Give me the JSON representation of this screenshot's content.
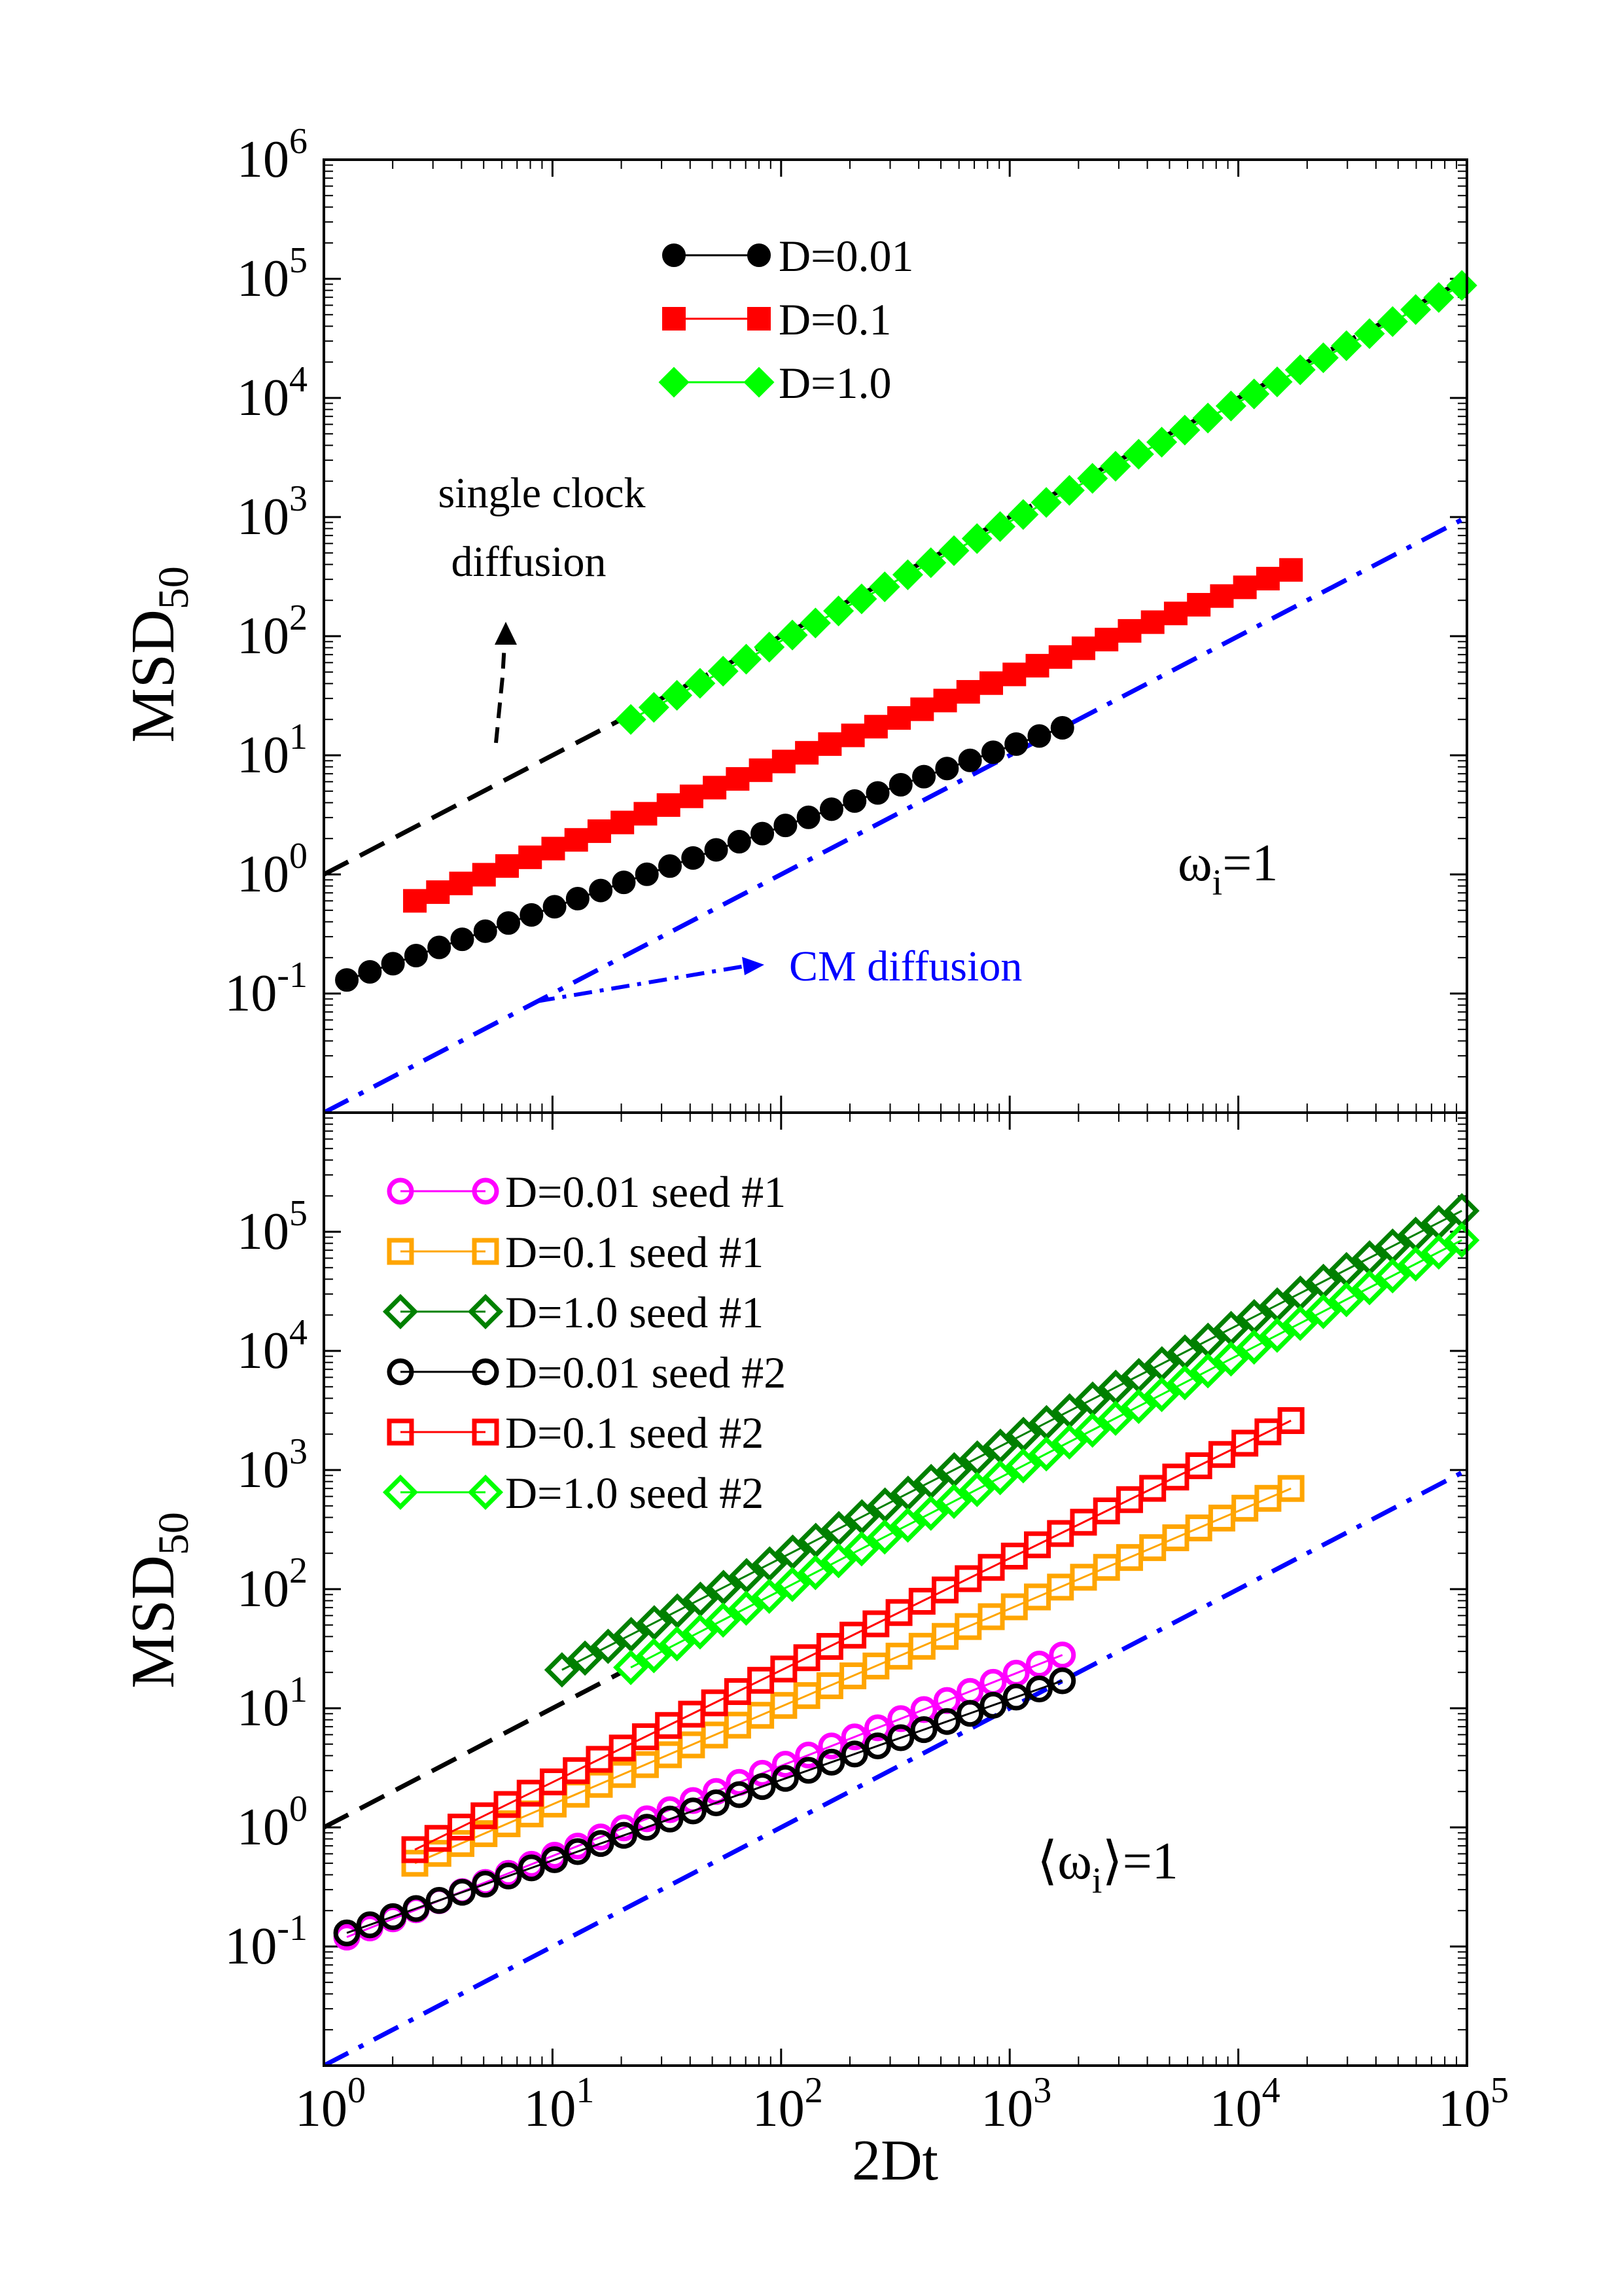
{
  "chart_data": [
    {
      "type": "scatter",
      "panel": "top",
      "xscale": "log",
      "yscale": "log",
      "xlim": [
        1,
        100000
      ],
      "ylim": [
        0.01,
        1000000
      ],
      "xlabel": "2Dt",
      "ylabel": "MSD",
      "ylabel_sub": "50",
      "x_tick_labels_shown": false,
      "y_ticks": [
        {
          "base": "10",
          "exp": "6"
        },
        {
          "base": "10",
          "exp": "5"
        },
        {
          "base": "10",
          "exp": "4"
        },
        {
          "base": "10",
          "exp": "3"
        },
        {
          "base": "10",
          "exp": "2"
        },
        {
          "base": "10",
          "exp": "1"
        },
        {
          "base": "10",
          "exp": "0"
        },
        {
          "base": "10",
          "exp": "-1"
        }
      ],
      "legend_position": "top-center",
      "series": [
        {
          "name": "D=0.01",
          "color": "#000000",
          "marker": "circle",
          "filled": true,
          "x_range": [
            1.26,
            1700
          ],
          "y_range": [
            0.13,
            17
          ],
          "n_points": 32
        },
        {
          "name": "D=0.1",
          "color": "#ff0000",
          "marker": "square",
          "filled": true,
          "x_range": [
            2.5,
            17000
          ],
          "y_range": [
            0.6,
            360
          ],
          "n_points": 39
        },
        {
          "name": "D=1.0",
          "color": "#00ff00",
          "marker": "diamond",
          "filled": true,
          "x_range": [
            22,
            95000
          ],
          "y_range": [
            20,
            88000
          ],
          "n_points": 37
        }
      ],
      "guides": [
        {
          "name": "single clock diffusion",
          "style": "dashed",
          "color": "#000000",
          "slope": 1,
          "prefactor": 1,
          "x_range": [
            1,
            100000
          ]
        },
        {
          "name": "CM diffusion",
          "style": "dash-dot",
          "color": "#0000ff",
          "slope": 1,
          "prefactor": 0.01,
          "x_range": [
            1,
            100000
          ]
        }
      ],
      "annotations": {
        "single_clock_line1": "single clock",
        "single_clock_line2": "diffusion",
        "cm": "CM diffusion",
        "omega_symbol": "ω",
        "omega_sub": "i",
        "omega_rest": "=1"
      }
    },
    {
      "type": "scatter",
      "panel": "bottom",
      "xscale": "log",
      "yscale": "log",
      "xlim": [
        1,
        100000
      ],
      "ylim": [
        0.01,
        1000000
      ],
      "xlabel": "2Dt",
      "ylabel": "MSD",
      "ylabel_sub": "50",
      "x_ticks": [
        {
          "base": "10",
          "exp": "0"
        },
        {
          "base": "10",
          "exp": "1"
        },
        {
          "base": "10",
          "exp": "2"
        },
        {
          "base": "10",
          "exp": "3"
        },
        {
          "base": "10",
          "exp": "4"
        },
        {
          "base": "10",
          "exp": "5"
        }
      ],
      "y_ticks": [
        {
          "base": "10",
          "exp": "5"
        },
        {
          "base": "10",
          "exp": "4"
        },
        {
          "base": "10",
          "exp": "3"
        },
        {
          "base": "10",
          "exp": "2"
        },
        {
          "base": "10",
          "exp": "1"
        },
        {
          "base": "10",
          "exp": "0"
        },
        {
          "base": "10",
          "exp": "-1"
        }
      ],
      "legend_position": "top-left",
      "series": [
        {
          "name": "D=0.01 seed #1",
          "color": "#ff00ff",
          "marker": "circle",
          "filled": false,
          "x_range": [
            1.26,
            1700
          ],
          "y_range": [
            0.12,
            28
          ],
          "n_points": 32
        },
        {
          "name": "D=0.1 seed #1",
          "color": "#ffa500",
          "marker": "square",
          "filled": false,
          "x_range": [
            2.5,
            17000
          ],
          "y_range": [
            0.5,
            700
          ],
          "n_points": 39
        },
        {
          "name": "D=1.0 seed #1",
          "color": "#008000",
          "marker": "diamond",
          "filled": false,
          "x_range": [
            11,
            95000
          ],
          "y_range": [
            21,
            150000
          ],
          "n_points": 40
        },
        {
          "name": "D=0.01 seed #2",
          "color": "#000000",
          "marker": "circle",
          "filled": false,
          "x_range": [
            1.26,
            1700
          ],
          "y_range": [
            0.13,
            17
          ],
          "n_points": 32
        },
        {
          "name": "D=0.1 seed #2",
          "color": "#ff0000",
          "marker": "square",
          "filled": false,
          "x_range": [
            2.5,
            17000
          ],
          "y_range": [
            0.65,
            2600
          ],
          "n_points": 39
        },
        {
          "name": "D=1.0 seed #2",
          "color": "#00ff00",
          "marker": "diamond",
          "filled": false,
          "x_range": [
            22,
            95000
          ],
          "y_range": [
            22,
            85000
          ],
          "n_points": 37
        }
      ],
      "guides": [
        {
          "name": "single clock diffusion",
          "style": "dashed",
          "color": "#000000",
          "slope": 1,
          "prefactor": 1,
          "x_range": [
            1,
            20
          ]
        },
        {
          "name": "CM diffusion",
          "style": "dash-dot",
          "color": "#0000ff",
          "slope": 1,
          "prefactor": 0.01,
          "x_range": [
            1,
            100000
          ]
        }
      ],
      "annotations": {
        "omega_left": "⟨ω",
        "omega_sub": "i",
        "omega_right": "⟩=1"
      }
    }
  ]
}
